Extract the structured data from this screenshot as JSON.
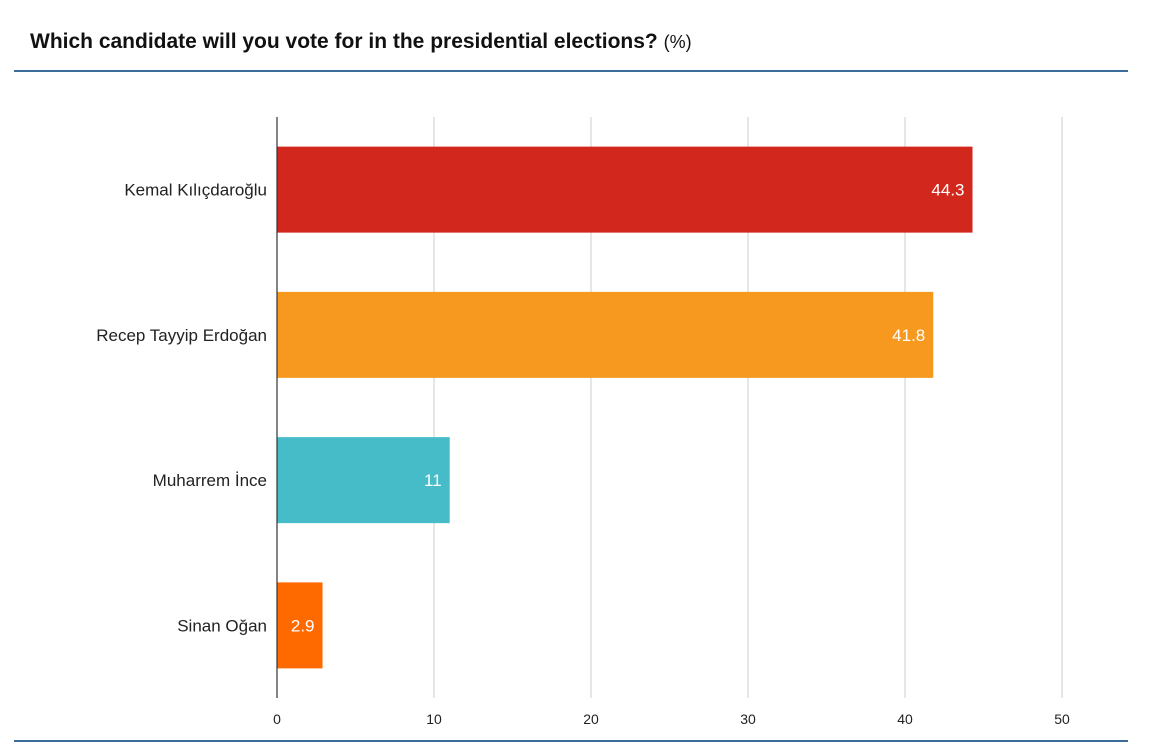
{
  "header": {
    "title": "Which candidate will you vote for in the presidential elections?",
    "unit": "(%)"
  },
  "chart_data": {
    "type": "bar",
    "orientation": "horizontal",
    "title": "Which candidate will you vote for in the presidential elections? (%)",
    "categories": [
      "Kemal Kılıçdaroğlu",
      "Recep Tayyip Erdoğan",
      "Muharrem İnce",
      "Sinan Oğan"
    ],
    "values": [
      44.3,
      41.8,
      11,
      2.9
    ],
    "value_labels": [
      "44.3",
      "41.8",
      "11",
      "2.9"
    ],
    "colors": [
      "#d2271d",
      "#f7991f",
      "#45bcc8",
      "#ff6a00"
    ],
    "xlim": [
      0,
      50
    ],
    "xticks": [
      0,
      10,
      20,
      30,
      40,
      50
    ],
    "xtick_labels": [
      "0",
      "10",
      "20",
      "30",
      "40",
      "50"
    ],
    "xlabel": "",
    "ylabel": "",
    "grid": true,
    "legend": "none"
  }
}
